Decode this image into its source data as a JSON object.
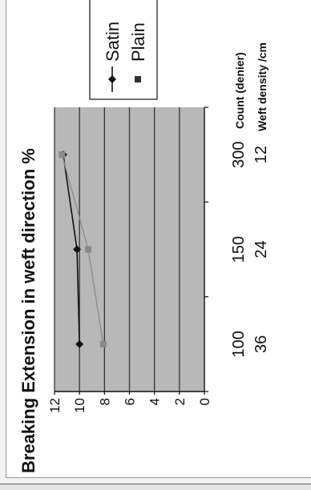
{
  "chart_data": {
    "type": "line",
    "title": "Breaking Extension in weft direction %",
    "categories": [
      [
        "100",
        "36"
      ],
      [
        "150",
        "24"
      ],
      [
        "300",
        "12"
      ]
    ],
    "category_axis_labels": [
      "Count (denier)",
      "Weft density /cm"
    ],
    "ylim": [
      0,
      12
    ],
    "y_ticks": [
      "0",
      "2",
      "4",
      "6",
      "8",
      "10",
      "12"
    ],
    "grid": true,
    "legend_position": "right",
    "series": [
      {
        "name": "Satin",
        "values": [
          10,
          10.2,
          11.3
        ],
        "color": "#111111",
        "marker": "diamond"
      },
      {
        "name": "Plain",
        "values": [
          8.1,
          9.3,
          11.4
        ],
        "color": "#8a8a8a",
        "marker": "square"
      }
    ],
    "plot_background": "#b8b8b8"
  }
}
